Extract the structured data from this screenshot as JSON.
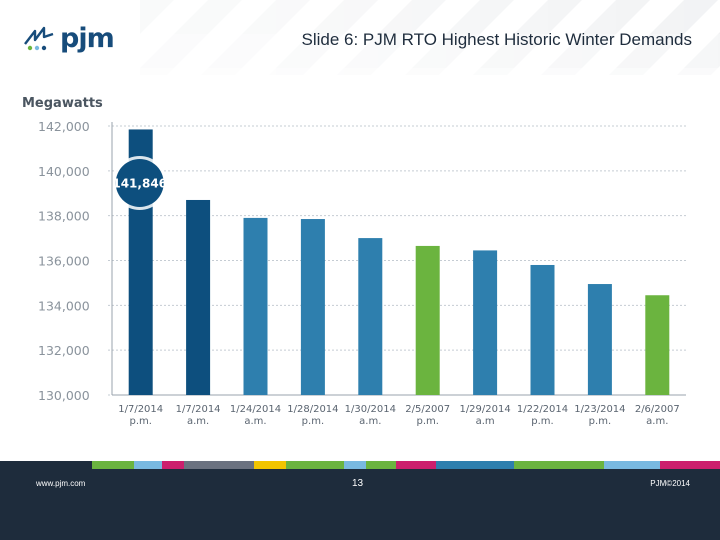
{
  "header": {
    "logo_text": "pjm",
    "title": "Slide 6: PJM RTO Highest Historic Winter Demands"
  },
  "chart_data": {
    "type": "bar",
    "ylabel": "Megawatts",
    "ylim": [
      130000,
      142000
    ],
    "yticks": [
      "130,000",
      "132,000",
      "134,000",
      "136,000",
      "138,000",
      "140,000",
      "142,000"
    ],
    "categories": [
      [
        "1/7/2014",
        "p.m."
      ],
      [
        "1/7/2014",
        "a.m."
      ],
      [
        "1/24/2014",
        "a.m."
      ],
      [
        "1/28/2014",
        "p.m."
      ],
      [
        "1/30/2014",
        "a.m."
      ],
      [
        "2/5/2007",
        "p.m."
      ],
      [
        "1/29/2014",
        "a.m"
      ],
      [
        "1/22/2014",
        "p.m."
      ],
      [
        "1/23/2014",
        "p.m."
      ],
      [
        "2/6/2007",
        "a.m."
      ]
    ],
    "values": [
      141846,
      138700,
      137900,
      137850,
      137000,
      136650,
      136450,
      135800,
      134950,
      134450
    ],
    "bar_colors": [
      "#0d4f7e",
      "#0d4f7e",
      "#2e7fae",
      "#2e7fae",
      "#2e7fae",
      "#6bb43f",
      "#2e7fae",
      "#2e7fae",
      "#2e7fae",
      "#6bb43f"
    ],
    "callout": {
      "text": "141,846",
      "bar_index": 0
    }
  },
  "footer": {
    "url": "www.pjm.com",
    "page": "13",
    "copyright": "PJM©2014",
    "stripe_colors": [
      "#1e2c3c",
      "#6bb43f",
      "#79b9e0",
      "#cc1f6d",
      "#6b7280",
      "#f2c500",
      "#6bb43f",
      "#79b9e0",
      "#6bb43f",
      "#cc1f6d",
      "#2e7fae",
      "#6bb43f",
      "#79b9e0",
      "#cc1f6d"
    ]
  },
  "colors": {
    "primary_bar": "#0d4f7e",
    "secondary_bar": "#2e7fae",
    "highlight_bar": "#6bb43f",
    "footer_bg": "#1e2c3c"
  }
}
